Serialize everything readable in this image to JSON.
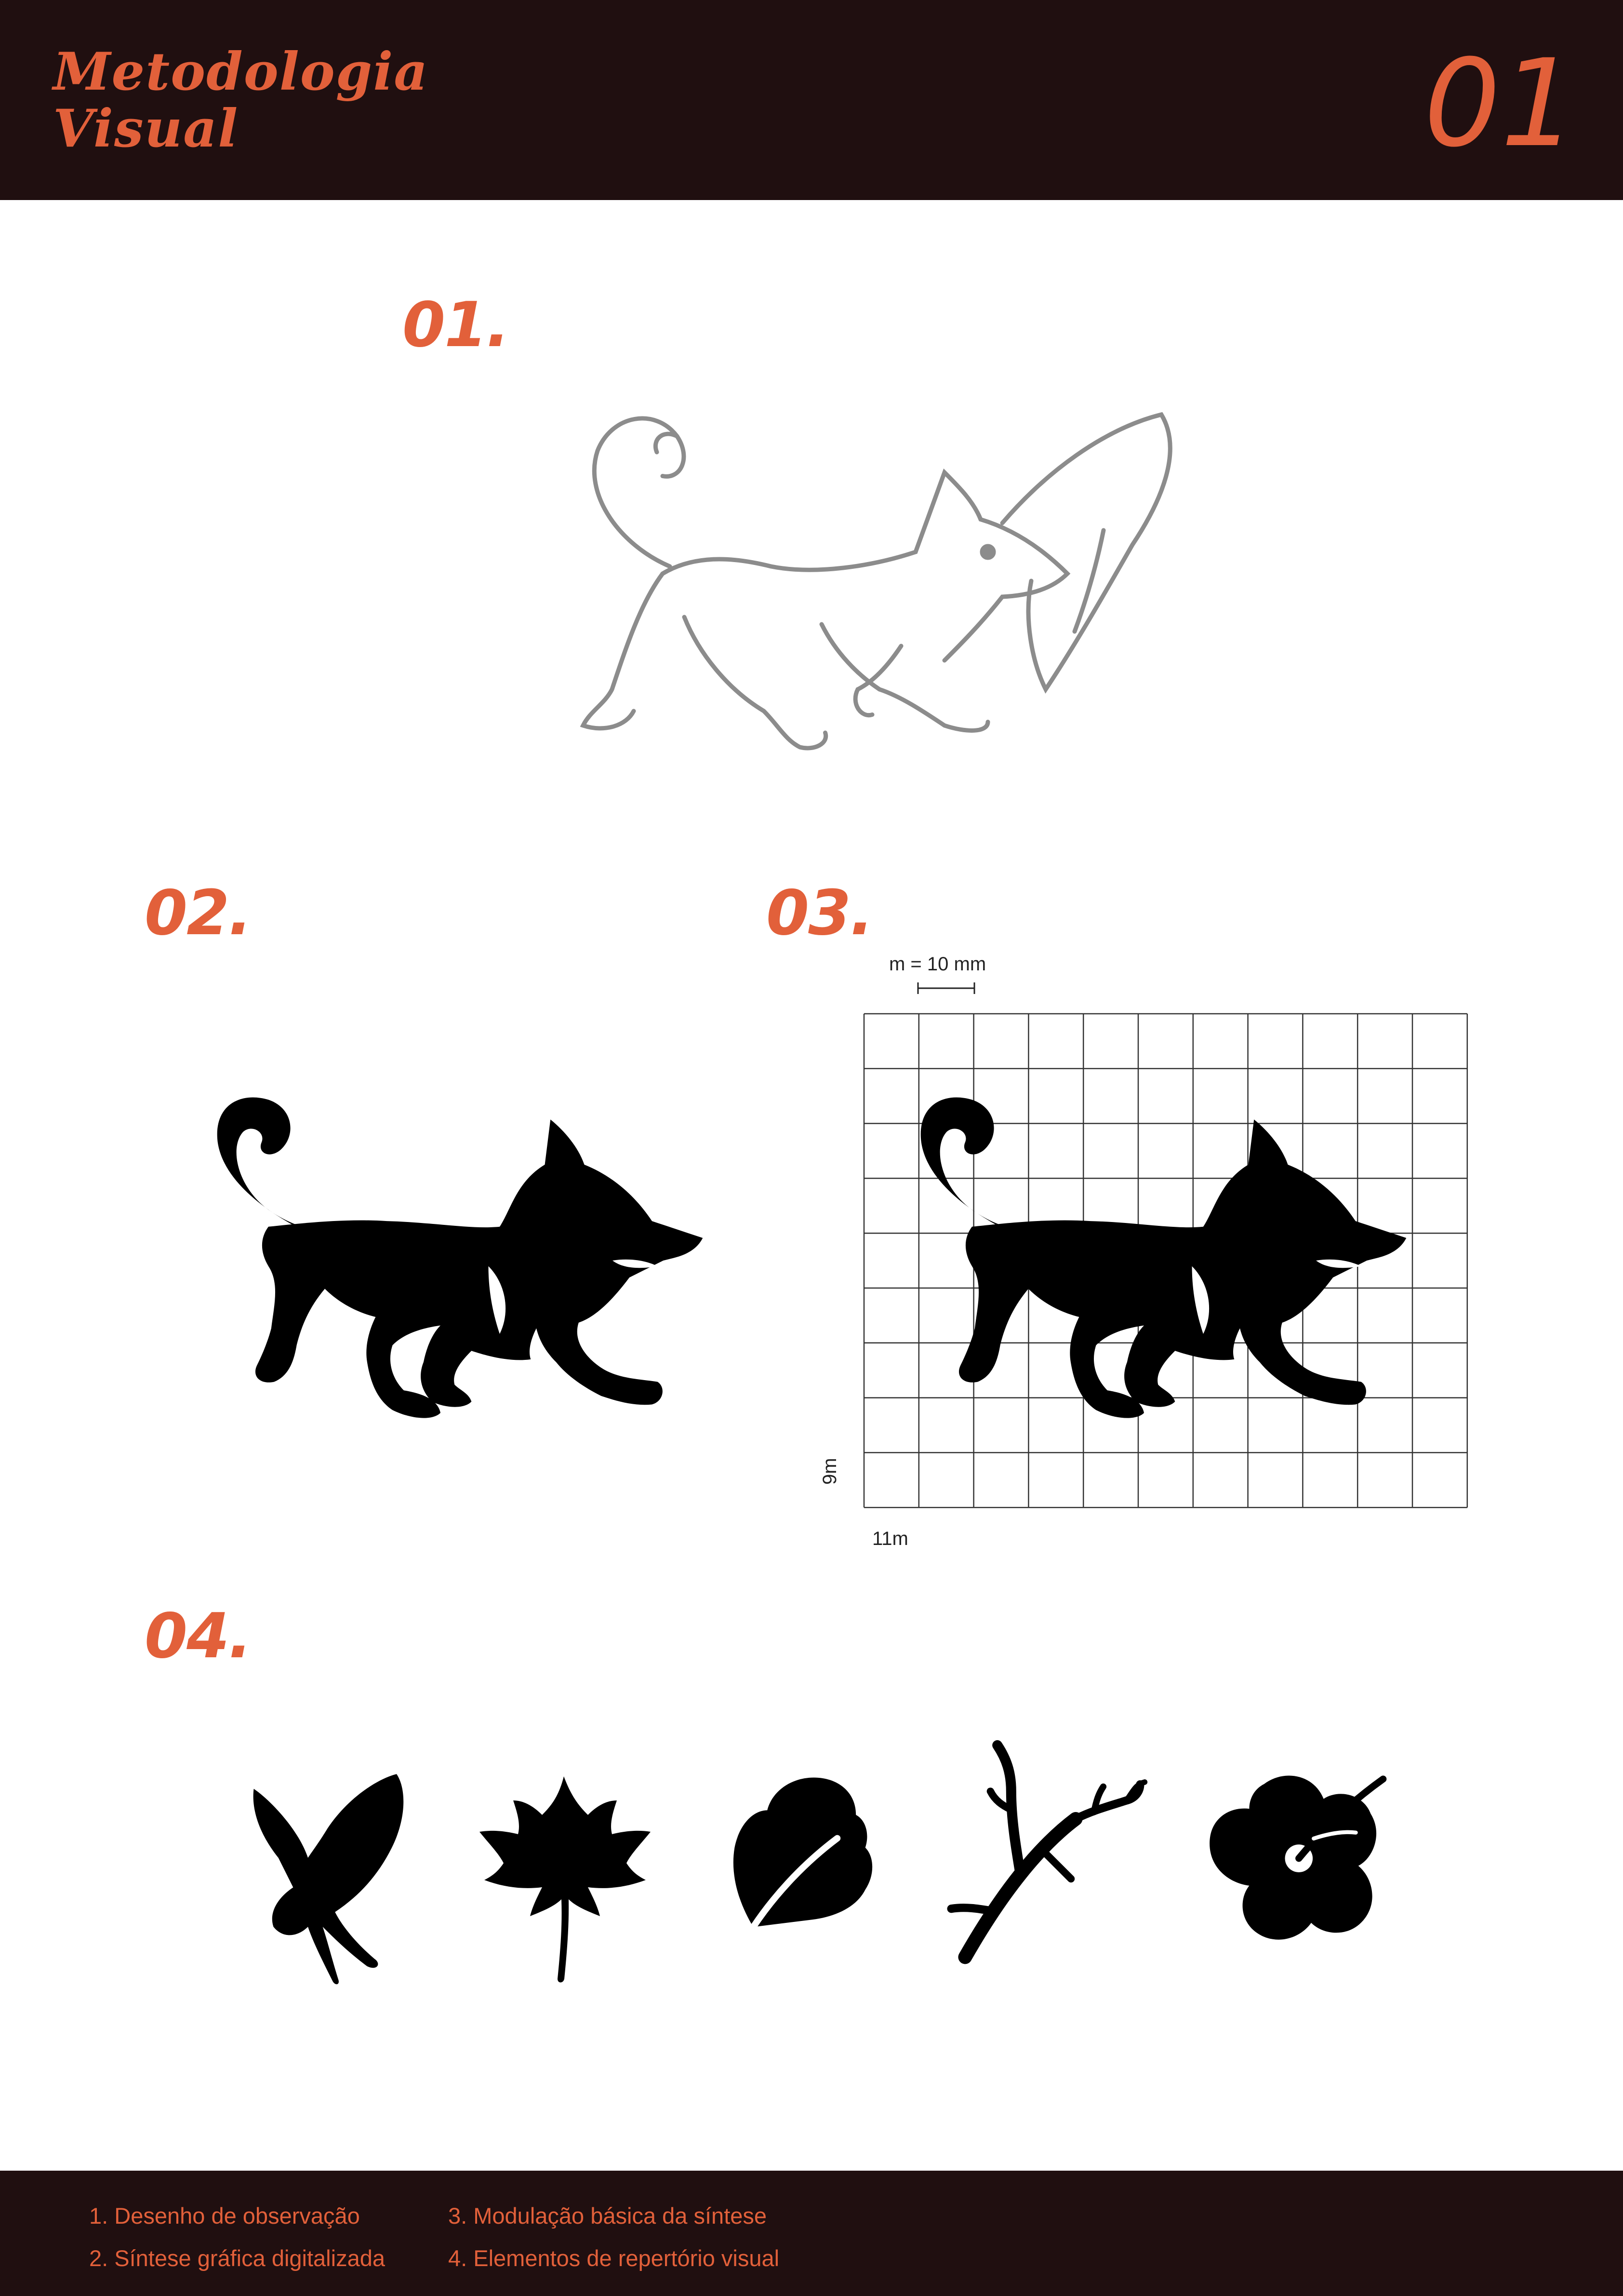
{
  "header": {
    "brand_line1": "Metodologia",
    "brand_line2": "Visual",
    "page_number": "01"
  },
  "steps": [
    {
      "number": "01."
    },
    {
      "number": "02."
    },
    {
      "number": "03."
    },
    {
      "number": "04."
    }
  ],
  "grid": {
    "scale_label": "m = 10 mm",
    "height_label": "9m",
    "width_label": "11m",
    "rows": 9,
    "columns": 11
  },
  "repertoire_icons": [
    "butterfly-icon",
    "maple-leaf-icon",
    "leaf-icon",
    "branch-icon",
    "hibiscus-flower-icon"
  ],
  "footer": {
    "items": [
      "1. Desenho de observação",
      "2. Síntese gráfica digitalizada",
      "3. Modulação básica da síntese",
      "4. Elementos de repertório visual"
    ]
  },
  "colors": {
    "accent": "#e2603a",
    "band": "#200f10"
  }
}
